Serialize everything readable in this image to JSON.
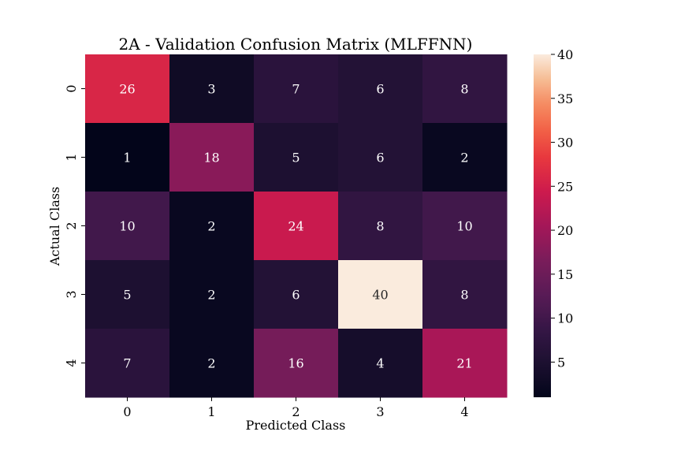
{
  "chart_data": {
    "type": "heatmap",
    "title": "2A - Validation Confusion Matrix (MLFFNN)",
    "xlabel": "Predicted Class",
    "ylabel": "Actual Class",
    "x_categories": [
      "0",
      "1",
      "2",
      "3",
      "4"
    ],
    "y_categories": [
      "0",
      "1",
      "2",
      "3",
      "4"
    ],
    "values": [
      [
        26,
        3,
        7,
        6,
        8
      ],
      [
        1,
        18,
        5,
        6,
        2
      ],
      [
        10,
        2,
        24,
        8,
        10
      ],
      [
        5,
        2,
        6,
        40,
        8
      ],
      [
        7,
        2,
        16,
        4,
        21
      ]
    ],
    "colorbar": {
      "min": 1,
      "max": 40,
      "ticks": [
        5,
        10,
        15,
        20,
        25,
        30,
        35,
        40
      ],
      "colormap": "rocket"
    }
  }
}
